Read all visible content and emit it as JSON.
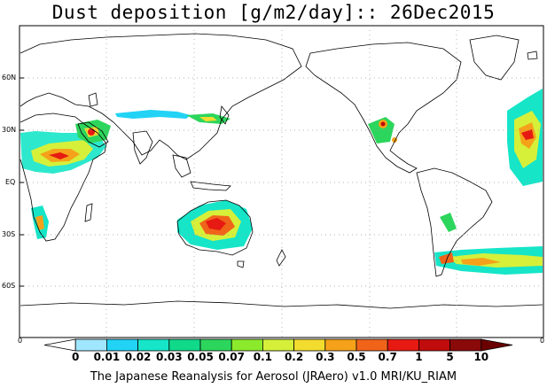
{
  "title": "Dust deposition [g/m2/day]:: 26Dec2015",
  "latitude_labels": [
    "60N",
    "30N",
    "EQ",
    "30S",
    "60S"
  ],
  "x_axis_end_labels": [
    "0",
    "0"
  ],
  "colorbar": {
    "labels": [
      "0",
      "0.01",
      "0.02",
      "0.03",
      "0.05",
      "0.07",
      "0.1",
      "0.2",
      "0.3",
      "0.5",
      "0.7",
      "1",
      "5",
      "10"
    ],
    "colors": [
      "#ffffff",
      "#a0e6ff",
      "#22d3f5",
      "#16e5c8",
      "#10d98a",
      "#2cd65c",
      "#8cea2c",
      "#d6f03a",
      "#f2dc2e",
      "#f5a21a",
      "#f0641a",
      "#e61a12",
      "#c00c0c",
      "#8a0a0a",
      "#6a0000"
    ]
  },
  "credit": "The Japanese Reanalysis for Aerosol (JRAero) v1.0 MRI/KU_RIAM"
}
